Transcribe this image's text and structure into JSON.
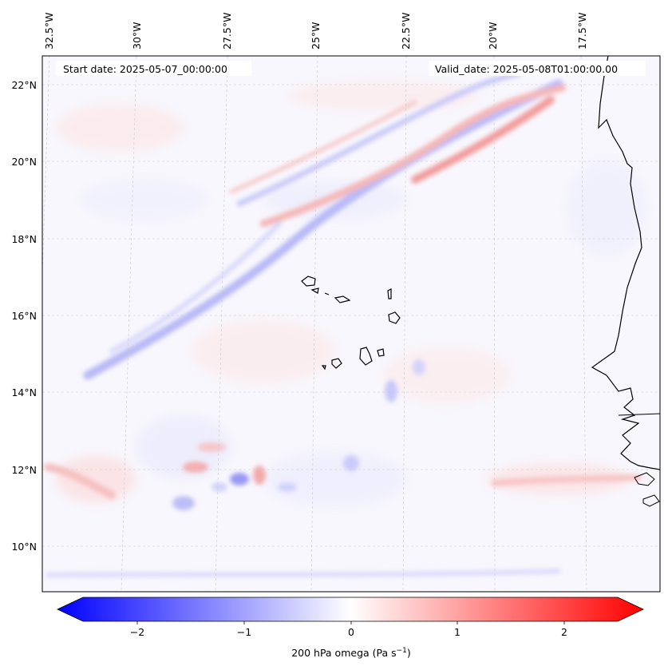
{
  "header": {
    "start_date": "Start date: 2025-05-07_00:00:00",
    "valid_date": "Valid_date: 2025-05-08T01:00:00.00"
  },
  "map": {
    "lon_labels": [
      "32.5°W",
      "30°W",
      "27.5°W",
      "25°W",
      "22.5°W",
      "20°W",
      "17.5°W"
    ],
    "lat_labels": [
      "22°N",
      "20°N",
      "18°N",
      "16°N",
      "14°N",
      "12°N",
      "10°N"
    ]
  },
  "colorbar": {
    "ticks": [
      "−2",
      "−1",
      "0",
      "1",
      "2"
    ],
    "label": "200 hPa omega (Pa s",
    "label_sup": "−1",
    "label_end": ")",
    "range": [
      -2.5,
      2.5
    ],
    "colors": {
      "neg": "#0000ff",
      "mid": "#ffffff",
      "pos": "#ff0000"
    }
  }
}
